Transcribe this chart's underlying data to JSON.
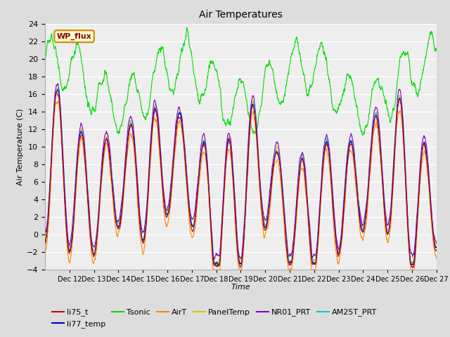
{
  "title": "Air Temperatures",
  "xlabel": "Time",
  "ylabel": "Air Temperature (C)",
  "ylim": [
    -4,
    24
  ],
  "yticks": [
    -4,
    -2,
    0,
    2,
    4,
    6,
    8,
    10,
    12,
    14,
    16,
    18,
    20,
    22,
    24
  ],
  "xtick_labels": [
    "Dec 12",
    "Dec 13",
    "Dec 14",
    "Dec 15",
    "Dec 16",
    "Dec 17",
    "Dec 18",
    "Dec 19",
    "Dec 20",
    "Dec 21",
    "Dec 22",
    "Dec 23",
    "Dec 24",
    "Dec 25",
    "Dec 26",
    "Dec 27"
  ],
  "series_colors": {
    "li75_t": "#cc0000",
    "li77_temp": "#0000cc",
    "Tsonic": "#00dd00",
    "AirT": "#ff8800",
    "PanelTemp": "#cccc00",
    "NR01_PRT": "#8800cc",
    "AM25T_PRT": "#00cccc"
  },
  "wp_flux_box": {
    "text": "WP_flux",
    "facecolor": "#ffffcc",
    "edgecolor": "#cc8800",
    "textcolor": "#880000"
  },
  "background_color": "#dddddd",
  "plot_background": "#eeeeee",
  "n_points": 1500,
  "seed": 42
}
